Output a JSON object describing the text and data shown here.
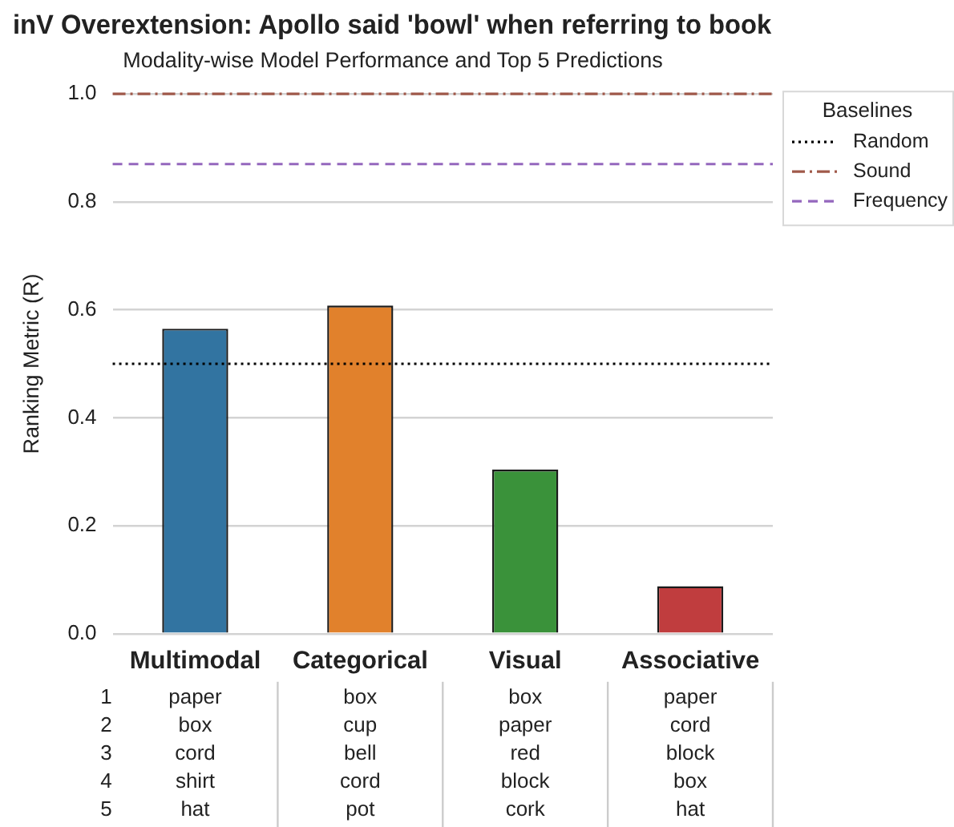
{
  "chart_data": {
    "type": "bar",
    "title": "inV Overextension: Apollo said 'bowl' when referring to book",
    "subtitle": "Modality-wise Model Performance and Top 5 Predictions",
    "ylabel": "Ranking Metric (R)",
    "legend_title": "Baselines",
    "categories": [
      "Multimodal",
      "Categorical",
      "Visual",
      "Associative"
    ],
    "values": [
      0.565,
      0.608,
      0.304,
      0.088
    ],
    "colors": [
      "#3274a1",
      "#e1812c",
      "#3a923a",
      "#c03d3e"
    ],
    "ylim": [
      0,
      1
    ],
    "yticks": [
      {
        "value": 0,
        "label": "0.0"
      },
      {
        "value": 0.2,
        "label": "0.2"
      },
      {
        "value": 0.4,
        "label": "0.4"
      },
      {
        "value": 0.6,
        "label": "0.6"
      },
      {
        "value": 0.8,
        "label": "0.8"
      },
      {
        "value": 1,
        "label": "1.0"
      }
    ],
    "grid": "y",
    "legend": "top right",
    "ref_lines": [
      {
        "axis": "y",
        "value": 0.5,
        "label": "Random",
        "color": "#000000",
        "line_style": "dotted"
      },
      {
        "axis": "y",
        "value": 1,
        "label": "Sound",
        "color": "#a0594a",
        "line_style": "dashdot"
      },
      {
        "axis": "y",
        "value": 0.87,
        "label": "Frequency",
        "color": "#9467bd",
        "line_style": "dashed"
      }
    ],
    "annotations": [
      "1",
      "2",
      "3",
      "4",
      "5",
      "paper",
      "box",
      "cord",
      "shirt",
      "hat",
      "box",
      "cup",
      "bell",
      "cord",
      "pot",
      "box",
      "paper",
      "red",
      "block",
      "cork",
      "paper",
      "cord",
      "block",
      "box",
      "hat"
    ]
  }
}
